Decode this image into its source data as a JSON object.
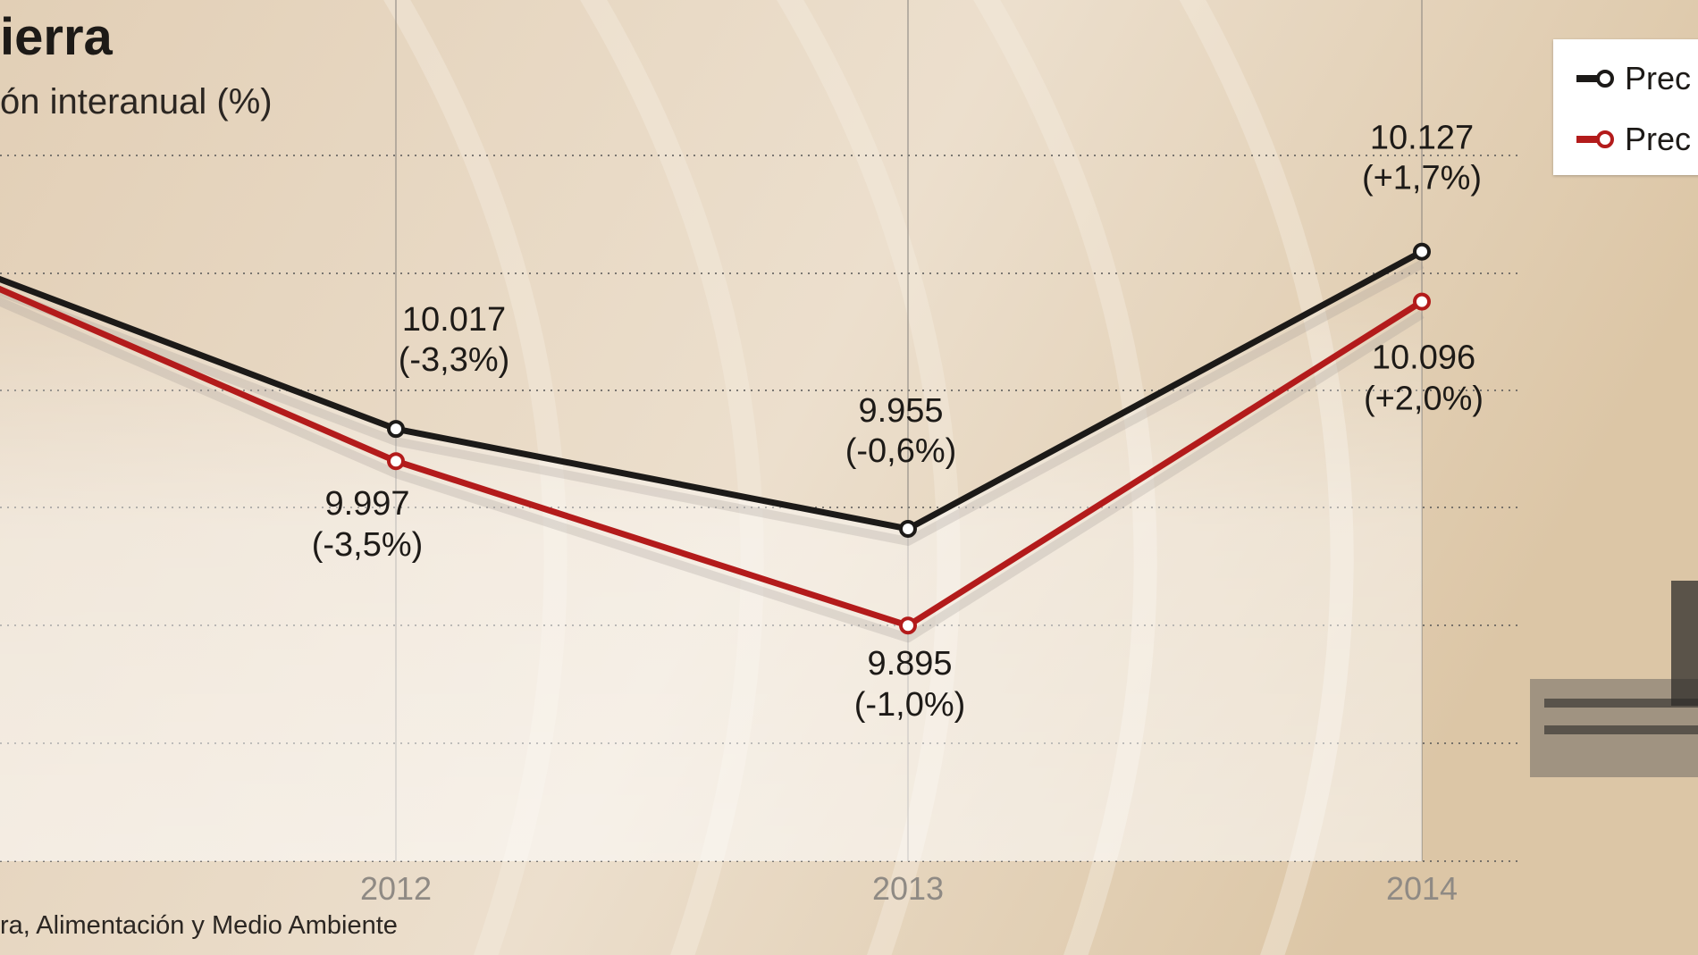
{
  "title": "ierra",
  "subtitle": "ón interanual (%)",
  "source": "ra, Alimentación y Medio Ambiente",
  "colors": {
    "series_black": "#1c1a18",
    "series_red": "#b31b1b",
    "grid": "#555555"
  },
  "legend": [
    {
      "label": "Prec",
      "color": "#1c1a18"
    },
    {
      "label": "Prec",
      "color": "#b31b1b"
    }
  ],
  "chart_data": {
    "type": "line",
    "x": [
      "2012",
      "2013",
      "2014"
    ],
    "series": [
      {
        "values": [
          10017,
          9955,
          10127
        ],
        "labels": [
          "10.017",
          "9.955",
          "10.127"
        ],
        "changes": [
          "(-3,3%)",
          "(-0,6%)",
          "(+1,7%)"
        ],
        "color": "#1c1a18"
      },
      {
        "values": [
          9997,
          9895,
          10096
        ],
        "labels": [
          "9.997",
          "9.895",
          "10.096"
        ],
        "changes": [
          "(-3,5%)",
          "(-1,0%)",
          "(+2,0%)"
        ],
        "color": "#b31b1b"
      }
    ],
    "grid": true,
    "legend_position": "top-right"
  }
}
